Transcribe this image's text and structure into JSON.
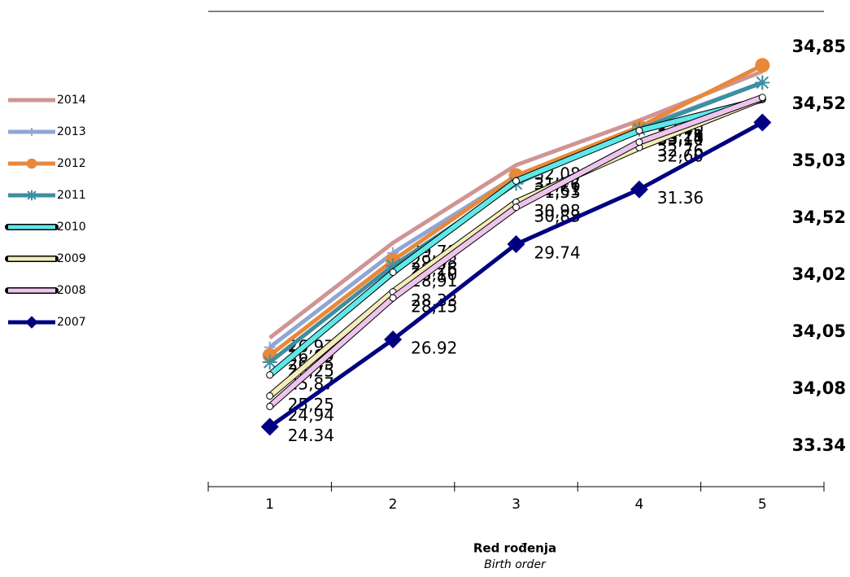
{
  "chart_data": {
    "type": "line",
    "x_label": "Red rođenja",
    "x_sublabel": "Birth order",
    "categories": [
      1,
      2,
      3,
      4,
      5
    ],
    "ylim": [
      23,
      36
    ],
    "series": [
      {
        "name": "2014",
        "color": "#d09494",
        "marker": "none",
        "values": [
          26.97,
          29.78,
          32.08,
          33.4,
          34.85
        ],
        "value_labels": [
          "26,97",
          "29,78",
          "32,08",
          "33,40",
          "34,85"
        ]
      },
      {
        "name": "2013",
        "color": "#8fa6d4",
        "marker": "plus",
        "values": [
          26.69,
          29.48,
          31.76,
          33.19,
          34.52
        ],
        "value_labels": [
          "26,69",
          "29,48",
          "31,76",
          "33,19",
          "34,52"
        ]
      },
      {
        "name": "2012",
        "color": "#e8883a",
        "marker": "circle",
        "values": [
          26.45,
          29.26,
          31.77,
          33.21,
          35.03
        ],
        "value_labels": [
          "26,45",
          "29,26",
          "31,77",
          "33,21",
          "35,03"
        ]
      },
      {
        "name": "2011",
        "color": "#3c8fa0",
        "marker": "asterisk",
        "values": [
          26.25,
          29.1,
          31.53,
          33.14,
          34.52
        ],
        "value_labels": [
          "26,25",
          "29,10",
          "31,53",
          "33,14",
          "34,52"
        ]
      },
      {
        "name": "2010",
        "color": "#5ee8e8",
        "marker": "small-circle",
        "values": [
          25.87,
          28.91,
          31.61,
          33.1,
          34.02
        ],
        "value_labels": [
          "25,87",
          "28,91",
          "31,61",
          "33,10",
          "34,02"
        ]
      },
      {
        "name": "2009",
        "color": "#f2ecb8",
        "marker": "small-circle",
        "values": [
          25.25,
          28.33,
          30.98,
          32.6,
          34.05
        ],
        "value_labels": [
          "25,25",
          "28,33",
          "30,98",
          "32,60",
          "34,05"
        ]
      },
      {
        "name": "2008",
        "color": "#eec4ee",
        "marker": "small-circle",
        "values": [
          24.94,
          28.15,
          30.83,
          32.76,
          34.08
        ],
        "value_labels": [
          "24,94",
          "28,15",
          "30,83",
          "32,76",
          "34,08"
        ]
      },
      {
        "name": "2007",
        "color": "#000080",
        "marker": "diamond",
        "values": [
          24.34,
          26.92,
          29.74,
          31.36,
          33.34
        ],
        "value_labels": [
          "24.34",
          "26.92",
          "29.74",
          "31.36",
          "33.34"
        ]
      }
    ]
  }
}
